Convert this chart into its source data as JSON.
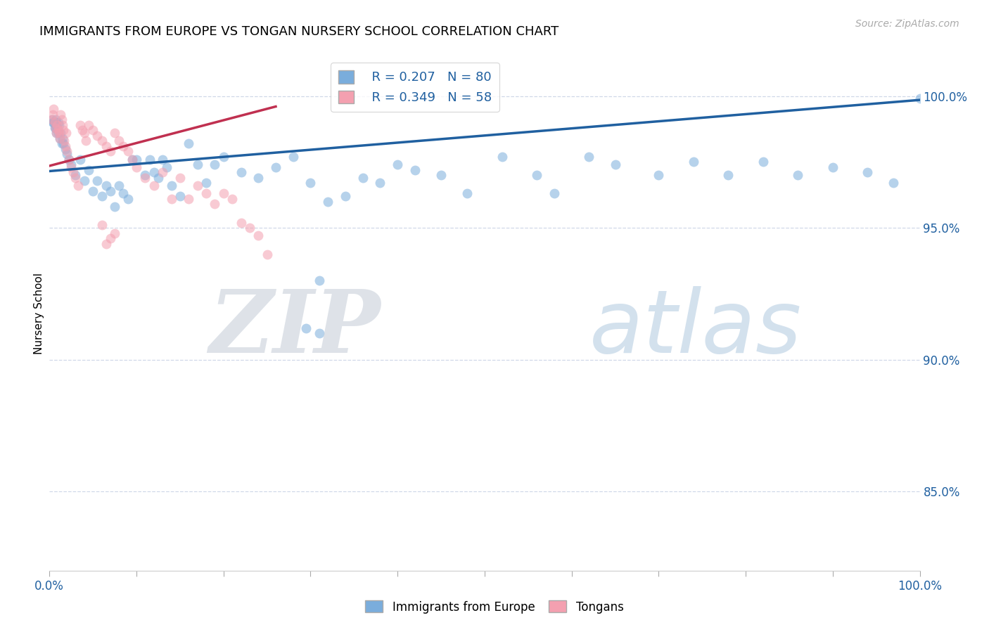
{
  "title": "IMMIGRANTS FROM EUROPE VS TONGAN NURSERY SCHOOL CORRELATION CHART",
  "source": "Source: ZipAtlas.com",
  "ylabel": "Nursery School",
  "watermark_zip": "ZIP",
  "watermark_atlas": "atlas",
  "legend_blue_label": "Immigrants from Europe",
  "legend_pink_label": "Tongans",
  "legend_blue_r": "R = 0.207",
  "legend_blue_n": "N = 80",
  "legend_pink_r": "R = 0.349",
  "legend_pink_n": "N = 58",
  "ytick_labels": [
    "100.0%",
    "95.0%",
    "90.0%",
    "85.0%"
  ],
  "ytick_values": [
    1.0,
    0.95,
    0.9,
    0.85
  ],
  "xlim": [
    0.0,
    1.0
  ],
  "ylim": [
    0.82,
    1.015
  ],
  "blue_color": "#7aaddc",
  "pink_color": "#f4a0b0",
  "blue_line_color": "#2060a0",
  "pink_line_color": "#c03050",
  "background_color": "#ffffff",
  "grid_color": "#d0d8e8",
  "blue_points_x": [
    0.003,
    0.004,
    0.005,
    0.006,
    0.006,
    0.007,
    0.007,
    0.008,
    0.008,
    0.009,
    0.01,
    0.01,
    0.011,
    0.012,
    0.013,
    0.014,
    0.015,
    0.016,
    0.018,
    0.02,
    0.022,
    0.025,
    0.03,
    0.035,
    0.04,
    0.045,
    0.05,
    0.055,
    0.06,
    0.065,
    0.07,
    0.075,
    0.08,
    0.085,
    0.09,
    0.095,
    0.1,
    0.11,
    0.115,
    0.12,
    0.125,
    0.13,
    0.135,
    0.14,
    0.15,
    0.16,
    0.17,
    0.18,
    0.19,
    0.2,
    0.22,
    0.24,
    0.26,
    0.28,
    0.3,
    0.32,
    0.34,
    0.36,
    0.38,
    0.4,
    0.42,
    0.45,
    0.48,
    0.52,
    0.56,
    0.58,
    0.62,
    0.65,
    0.7,
    0.74,
    0.78,
    0.82,
    0.86,
    0.9,
    0.94,
    0.97,
    1.0,
    0.31,
    0.31,
    0.295
  ],
  "blue_points_y": [
    0.991,
    0.99,
    0.99,
    0.99,
    0.988,
    0.991,
    0.988,
    0.99,
    0.986,
    0.988,
    0.99,
    0.986,
    0.989,
    0.984,
    0.986,
    0.982,
    0.984,
    0.982,
    0.98,
    0.978,
    0.976,
    0.974,
    0.97,
    0.976,
    0.968,
    0.972,
    0.964,
    0.968,
    0.962,
    0.966,
    0.964,
    0.958,
    0.966,
    0.963,
    0.961,
    0.976,
    0.976,
    0.97,
    0.976,
    0.971,
    0.969,
    0.976,
    0.973,
    0.966,
    0.962,
    0.982,
    0.974,
    0.967,
    0.974,
    0.977,
    0.971,
    0.969,
    0.973,
    0.977,
    0.967,
    0.96,
    0.962,
    0.969,
    0.967,
    0.974,
    0.972,
    0.97,
    0.963,
    0.977,
    0.97,
    0.963,
    0.977,
    0.974,
    0.97,
    0.975,
    0.97,
    0.975,
    0.97,
    0.973,
    0.971,
    0.967,
    0.999,
    0.93,
    0.91,
    0.912
  ],
  "pink_points_x": [
    0.003,
    0.004,
    0.005,
    0.006,
    0.007,
    0.008,
    0.009,
    0.01,
    0.011,
    0.012,
    0.013,
    0.014,
    0.015,
    0.016,
    0.017,
    0.018,
    0.019,
    0.02,
    0.022,
    0.025,
    0.027,
    0.03,
    0.033,
    0.035,
    0.038,
    0.04,
    0.042,
    0.045,
    0.05,
    0.055,
    0.06,
    0.065,
    0.07,
    0.075,
    0.08,
    0.085,
    0.09,
    0.095,
    0.1,
    0.11,
    0.12,
    0.13,
    0.14,
    0.15,
    0.16,
    0.17,
    0.18,
    0.19,
    0.2,
    0.21,
    0.22,
    0.23,
    0.24,
    0.25,
    0.06,
    0.065,
    0.07,
    0.075
  ],
  "pink_points_y": [
    0.991,
    0.993,
    0.995,
    0.99,
    0.988,
    0.986,
    0.989,
    0.987,
    0.986,
    0.984,
    0.993,
    0.991,
    0.989,
    0.987,
    0.983,
    0.981,
    0.986,
    0.979,
    0.976,
    0.973,
    0.971,
    0.969,
    0.966,
    0.989,
    0.987,
    0.986,
    0.983,
    0.989,
    0.987,
    0.985,
    0.983,
    0.981,
    0.979,
    0.986,
    0.983,
    0.981,
    0.979,
    0.976,
    0.973,
    0.969,
    0.966,
    0.971,
    0.961,
    0.969,
    0.961,
    0.966,
    0.963,
    0.959,
    0.963,
    0.961,
    0.952,
    0.95,
    0.947,
    0.94,
    0.951,
    0.944,
    0.946,
    0.948
  ],
  "blue_line_x": [
    0.0,
    1.0
  ],
  "blue_line_y": [
    0.9715,
    0.9985
  ],
  "pink_line_x": [
    0.0,
    0.26
  ],
  "pink_line_y": [
    0.9735,
    0.996
  ]
}
